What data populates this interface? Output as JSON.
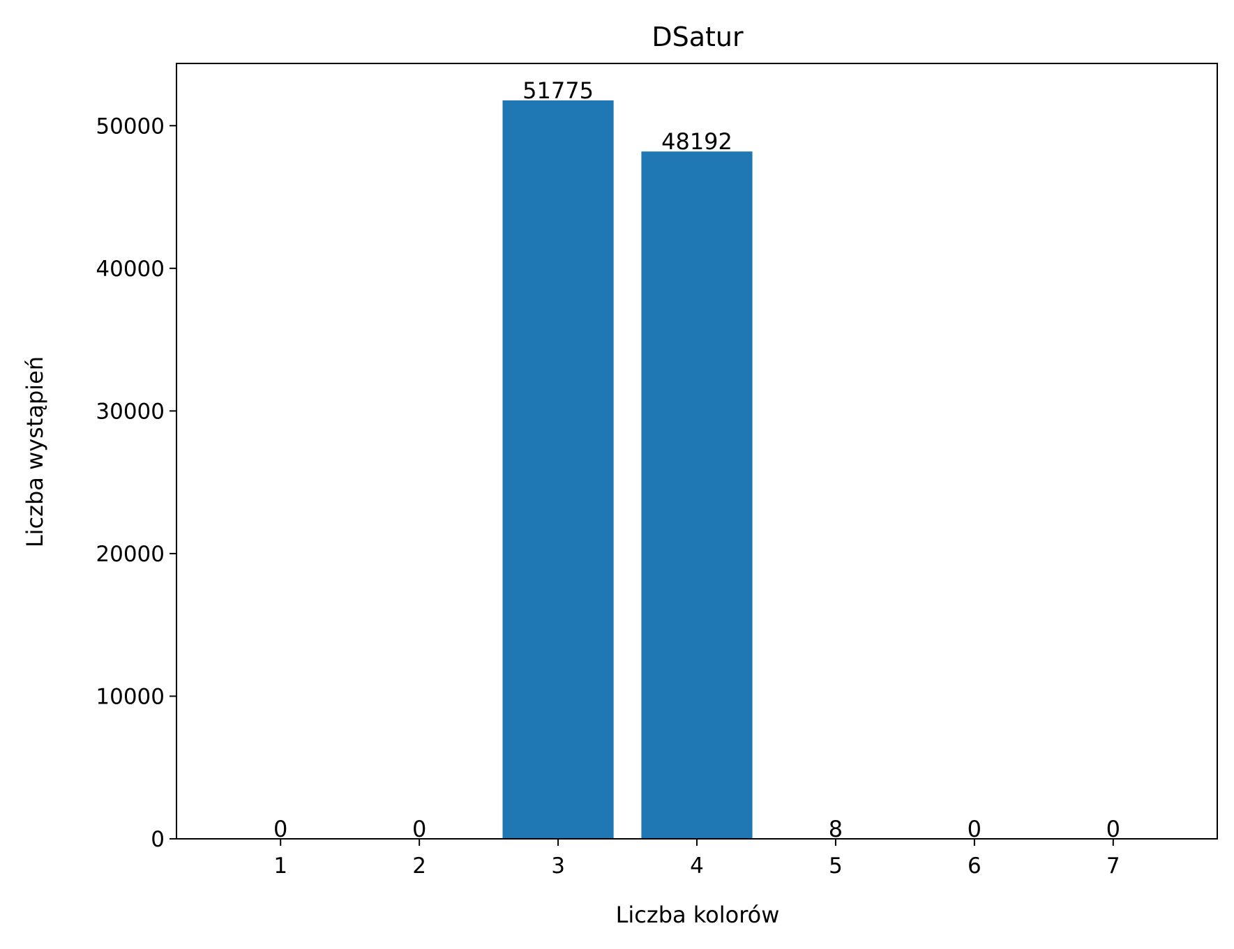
{
  "chart_data": {
    "type": "bar",
    "title": "DSatur",
    "xlabel": "Liczba kolorów",
    "ylabel": "Liczba wystąpień",
    "categories": [
      "1",
      "2",
      "3",
      "4",
      "5",
      "6",
      "7"
    ],
    "values": [
      0,
      0,
      51775,
      48192,
      8,
      0,
      0
    ],
    "data_labels": [
      "0",
      "0",
      "51775",
      "48192",
      "8",
      "0",
      "0"
    ],
    "y_ticks": [
      0,
      10000,
      20000,
      30000,
      40000,
      50000
    ],
    "y_tick_labels": [
      "0",
      "10000",
      "20000",
      "30000",
      "40000",
      "50000"
    ],
    "ylim": [
      0,
      54364
    ],
    "bar_color": "#1f77b4",
    "grid": false,
    "legend": "none"
  }
}
